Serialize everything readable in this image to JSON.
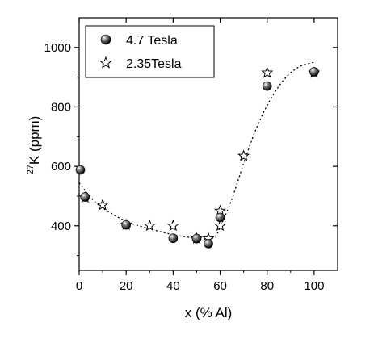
{
  "chart_data": {
    "type": "scatter",
    "xlabel": "x (% Al)",
    "ylabel_sup": "27",
    "ylabel_main": "K (ppm)",
    "xlim": [
      0,
      110
    ],
    "ylim": [
      250,
      1100
    ],
    "xticks": [
      0,
      20,
      40,
      60,
      80,
      100
    ],
    "yticks": [
      400,
      600,
      800,
      1000
    ],
    "grid": false,
    "legend_position": "top-left",
    "series": [
      {
        "name": "4.7 Tesla",
        "marker": "filled-sphere",
        "points": [
          {
            "x": 0.5,
            "y": 588
          },
          {
            "x": 2.5,
            "y": 497
          },
          {
            "x": 20,
            "y": 403
          },
          {
            "x": 40,
            "y": 358
          },
          {
            "x": 50,
            "y": 357
          },
          {
            "x": 55,
            "y": 340
          },
          {
            "x": 60,
            "y": 428
          },
          {
            "x": 80,
            "y": 870
          },
          {
            "x": 100,
            "y": 918
          }
        ]
      },
      {
        "name": "2.35Tesla",
        "marker": "open-star",
        "points": [
          {
            "x": 2.5,
            "y": 495
          },
          {
            "x": 10,
            "y": 470
          },
          {
            "x": 20,
            "y": 403
          },
          {
            "x": 30,
            "y": 400
          },
          {
            "x": 40,
            "y": 400
          },
          {
            "x": 50,
            "y": 357
          },
          {
            "x": 55,
            "y": 357
          },
          {
            "x": 60,
            "y": 400
          },
          {
            "x": 60,
            "y": 450
          },
          {
            "x": 70,
            "y": 635
          },
          {
            "x": 80,
            "y": 915
          },
          {
            "x": 100,
            "y": 915
          }
        ]
      }
    ],
    "fit_curve": {
      "style": "dotted",
      "points": [
        {
          "x": 0,
          "y": 545
        },
        {
          "x": 5,
          "y": 495
        },
        {
          "x": 10,
          "y": 460
        },
        {
          "x": 20,
          "y": 415
        },
        {
          "x": 30,
          "y": 390
        },
        {
          "x": 40,
          "y": 370
        },
        {
          "x": 50,
          "y": 358
        },
        {
          "x": 55,
          "y": 355
        },
        {
          "x": 58,
          "y": 365
        },
        {
          "x": 60,
          "y": 395
        },
        {
          "x": 65,
          "y": 490
        },
        {
          "x": 70,
          "y": 610
        },
        {
          "x": 75,
          "y": 720
        },
        {
          "x": 80,
          "y": 805
        },
        {
          "x": 85,
          "y": 870
        },
        {
          "x": 90,
          "y": 915
        },
        {
          "x": 95,
          "y": 940
        },
        {
          "x": 100,
          "y": 950
        }
      ]
    }
  }
}
